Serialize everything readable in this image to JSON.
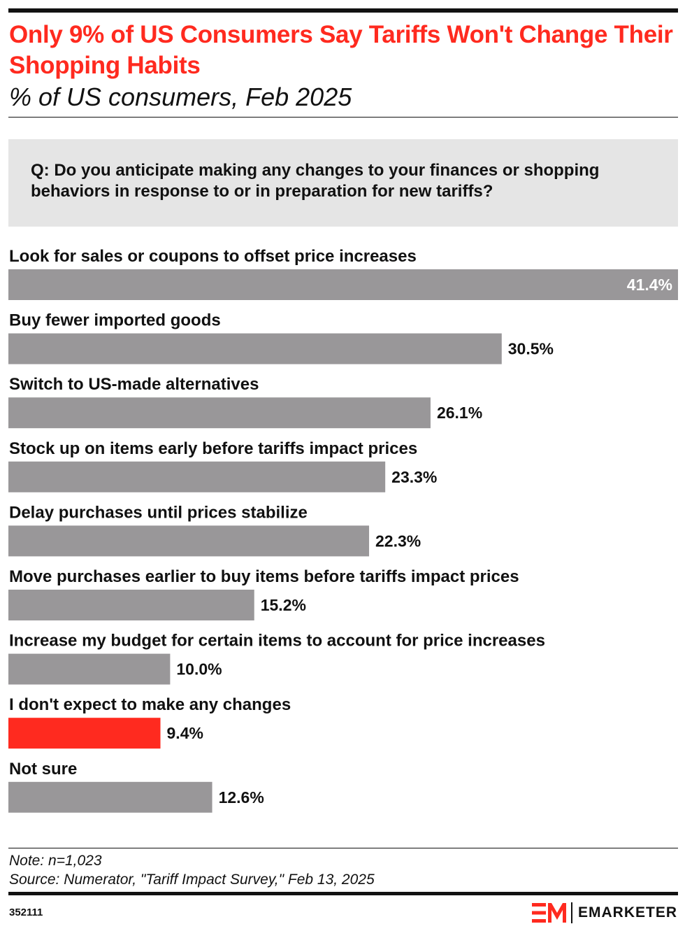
{
  "header": {
    "title": "Only 9% of US Consumers Say Tariffs Won't Change Their Shopping Habits",
    "subtitle": "% of US consumers, Feb 2025"
  },
  "question": "Q: Do you anticipate making any changes to your finances or shopping behaviors in response to or in preparation for new tariffs?",
  "colors": {
    "accent": "#ff2a1f",
    "bar": "#999799",
    "highlight_bar": "#ff2a1f",
    "question_bg": "#e5e5e5"
  },
  "chart_data": {
    "type": "bar",
    "orientation": "horizontal",
    "categories": [
      "Look for sales or coupons to offset price increases",
      "Buy fewer imported goods",
      "Switch to US-made alternatives",
      "Stock up on items early before tariffs impact prices",
      "Delay purchases until prices stabilize",
      "Move purchases earlier to buy items before tariffs impact prices",
      "Increase my budget for certain items to account for price increases",
      "I don't expect to make any changes",
      "Not sure"
    ],
    "values": [
      41.4,
      30.5,
      26.1,
      23.3,
      22.3,
      15.2,
      10.0,
      9.4,
      12.6
    ],
    "labels": [
      "41.4%",
      "30.5%",
      "26.1%",
      "23.3%",
      "22.3%",
      "15.2%",
      "10.0%",
      "9.4%",
      "12.6%"
    ],
    "highlight_index": 7,
    "xlim": [
      0,
      41.4
    ],
    "grid": false,
    "legend": "none"
  },
  "footer": {
    "note": "Note: n=1,023",
    "source": "Source: Numerator, \"Tariff Impact Survey,\" Feb 13, 2025",
    "chart_id": "352111",
    "brand": "EMARKETER"
  }
}
